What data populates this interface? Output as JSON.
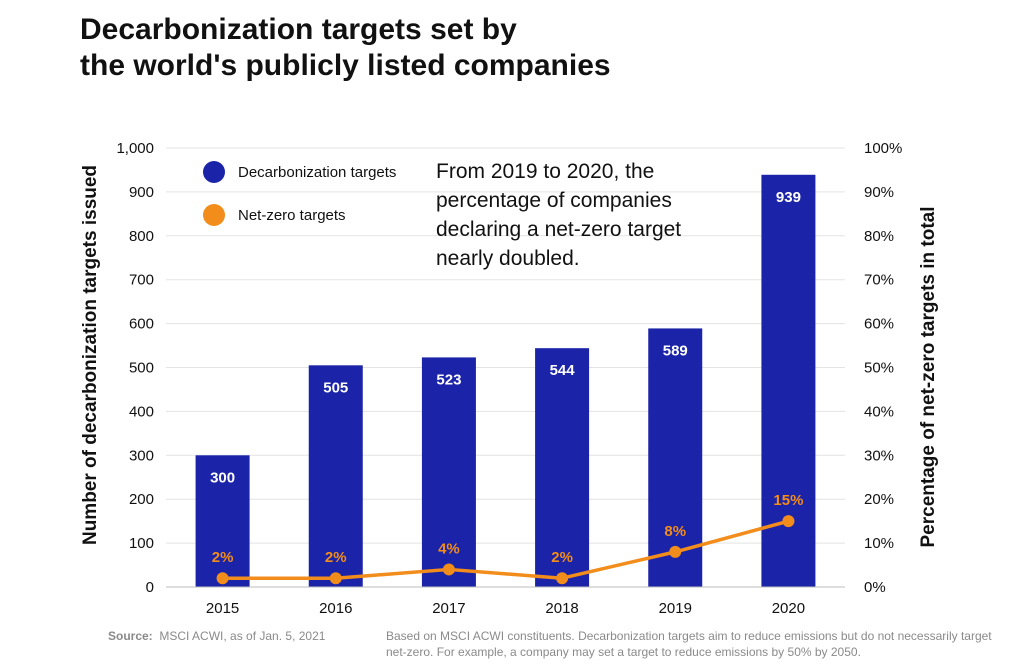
{
  "title": {
    "line1": "Decarbonization targets set by",
    "line2": "the world's publicly listed companies"
  },
  "annotation": {
    "lines": [
      "From 2019 to 2020, the",
      "percentage of companies",
      "declaring a net-zero target",
      "nearly doubled."
    ]
  },
  "footer": {
    "source_label": "Source:",
    "source_text": "MSCI ACWI, as of Jan. 5, 2021",
    "note": "Based on MSCI ACWI constituents. Decarbonization targets aim to reduce emissions but do not necessarily target net-zero. For example, a company may set a target to reduce emissions by 50% by 2050."
  },
  "colors": {
    "bar": "#1b24a8",
    "line": "#f28c1a",
    "grid": "#e3e3e3",
    "bar_label": "#ffffff",
    "line_label": "#f28c1a"
  },
  "chart_data": {
    "type": "bar",
    "categories": [
      "2015",
      "2016",
      "2017",
      "2018",
      "2019",
      "2020"
    ],
    "series": [
      {
        "name": "Decarbonization targets",
        "type": "bar",
        "axis": "left",
        "values": [
          300,
          505,
          523,
          544,
          589,
          939
        ],
        "labels": [
          "300",
          "505",
          "523",
          "544",
          "589",
          "939"
        ]
      },
      {
        "name": "Net-zero targets",
        "type": "line",
        "axis": "right",
        "values": [
          2,
          2,
          4,
          2,
          8,
          15
        ],
        "labels": [
          "2%",
          "2%",
          "4%",
          "2%",
          "8%",
          "15%"
        ]
      }
    ],
    "ylabel": "Number of decarbonization targets issued",
    "y2label": "Percentage of net-zero targets in total",
    "ylim": [
      0,
      1000
    ],
    "y2lim": [
      0,
      100
    ],
    "yticks": [
      "0",
      "100",
      "200",
      "300",
      "400",
      "500",
      "600",
      "700",
      "800",
      "900",
      "1,000"
    ],
    "y2ticks": [
      "0%",
      "10%",
      "20%",
      "30%",
      "40%",
      "50%",
      "60%",
      "70%",
      "80%",
      "90%",
      "100%"
    ],
    "grid": true,
    "legend": "top-left"
  }
}
